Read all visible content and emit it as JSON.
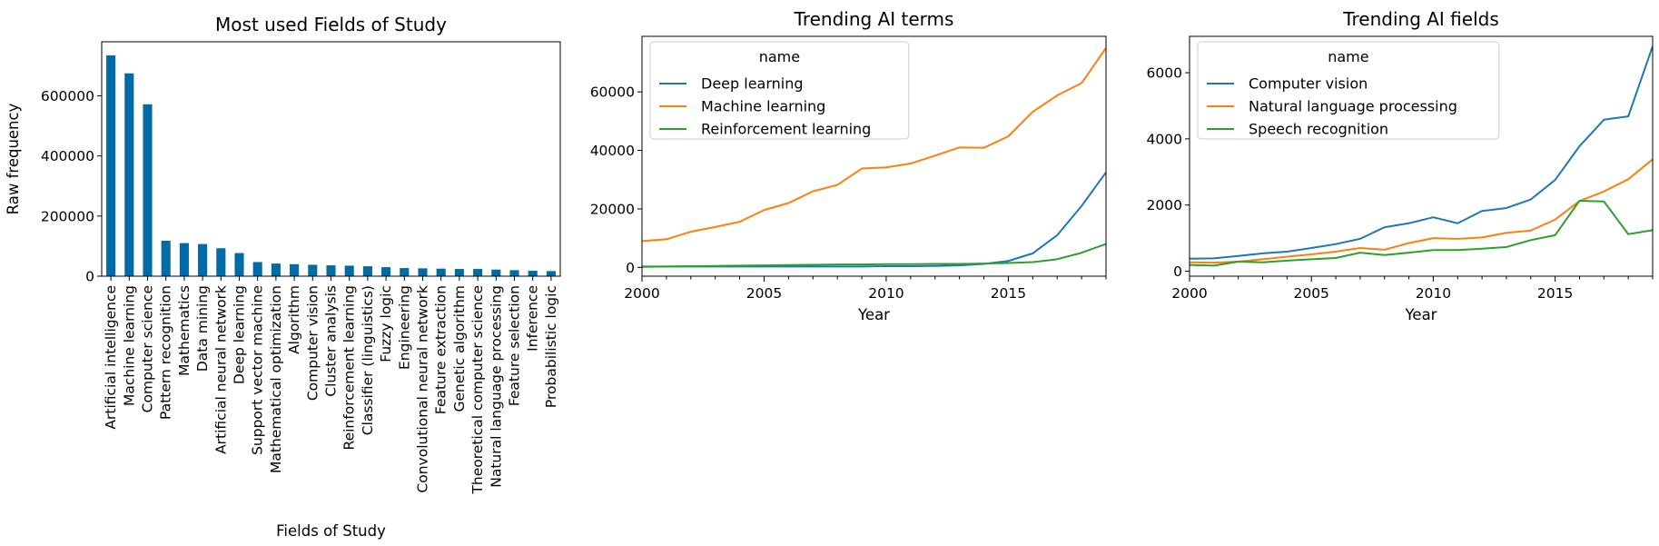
{
  "chart_data": [
    {
      "type": "bar",
      "title": "Most used Fields of Study",
      "xlabel": "Fields of Study",
      "ylabel": "Raw frequency",
      "ylim": [
        0,
        780000
      ],
      "yticks": [
        0,
        200000,
        400000,
        600000
      ],
      "color": "#006ba4",
      "categories": [
        "Artificial intelligence",
        "Machine learning",
        "Computer science",
        "Pattern recognition",
        "Mathematics",
        "Data mining",
        "Artificial neural network",
        "Deep learning",
        "Support vector machine",
        "Mathematical optimization",
        "Algorithm",
        "Computer vision",
        "Cluster analysis",
        "Reinforcement learning",
        "Classifier (linguistics)",
        "Fuzzy logic",
        "Engineering",
        "Convolutional neural network",
        "Feature extraction",
        "Genetic algorithm",
        "Theoretical computer science",
        "Natural language processing",
        "Feature selection",
        "Inference",
        "Probabilistic logic"
      ],
      "values": [
        735000,
        675000,
        572000,
        118000,
        110000,
        107000,
        93000,
        77000,
        47000,
        42000,
        40000,
        38000,
        36000,
        35000,
        33000,
        30000,
        27000,
        26000,
        25000,
        24000,
        24000,
        22000,
        20000,
        18000,
        17000
      ]
    },
    {
      "type": "line",
      "title": "Trending AI terms",
      "xlabel": "Year",
      "ylabel": "",
      "xlim": [
        2000,
        2019
      ],
      "ylim": [
        -3000,
        79000
      ],
      "xticks": [
        2000,
        2005,
        2010,
        2015
      ],
      "yticks": [
        0,
        20000,
        40000,
        60000
      ],
      "legend_title": "name",
      "legend_position": "top-left",
      "x": [
        2000,
        2001,
        2002,
        2003,
        2004,
        2005,
        2006,
        2007,
        2008,
        2009,
        2010,
        2011,
        2012,
        2013,
        2014,
        2015,
        2016,
        2017,
        2018,
        2019
      ],
      "series": [
        {
          "name": "Deep learning",
          "color": "#1f77b4",
          "values": [
            300,
            300,
            300,
            300,
            300,
            300,
            300,
            300,
            300,
            300,
            400,
            400,
            500,
            700,
            1200,
            2200,
            4800,
            11000,
            21000,
            32500
          ]
        },
        {
          "name": "Machine learning",
          "color": "#ff7f0e",
          "values": [
            9000,
            9600,
            12200,
            13800,
            15600,
            19600,
            22000,
            26000,
            28200,
            33800,
            34200,
            35500,
            38200,
            41000,
            40900,
            44800,
            53200,
            58800,
            63000,
            75000
          ]
        },
        {
          "name": "Reinforcement learning",
          "color": "#2ca02c",
          "values": [
            200,
            300,
            400,
            500,
            600,
            700,
            800,
            900,
            1000,
            1000,
            1100,
            1100,
            1200,
            1200,
            1300,
            1500,
            1800,
            2800,
            5000,
            8000
          ]
        }
      ]
    },
    {
      "type": "line",
      "title": "Trending AI fields",
      "xlabel": "Year",
      "ylabel": "",
      "xlim": [
        2000,
        2019
      ],
      "ylim": [
        -150,
        7100
      ],
      "xticks": [
        2000,
        2005,
        2010,
        2015
      ],
      "yticks": [
        0,
        2000,
        4000,
        6000
      ],
      "legend_title": "name",
      "legend_position": "top-left",
      "x": [
        2000,
        2001,
        2002,
        2003,
        2004,
        2005,
        2006,
        2007,
        2008,
        2009,
        2010,
        2011,
        2012,
        2013,
        2014,
        2015,
        2016,
        2017,
        2018,
        2019
      ],
      "series": [
        {
          "name": "Computer vision",
          "color": "#1f77b4",
          "values": [
            380,
            390,
            460,
            540,
            590,
            700,
            820,
            980,
            1330,
            1450,
            1630,
            1450,
            1820,
            1910,
            2170,
            2760,
            3780,
            4580,
            4680,
            6800
          ]
        },
        {
          "name": "Natural language processing",
          "color": "#ff7f0e",
          "values": [
            270,
            260,
            290,
            360,
            440,
            510,
            590,
            700,
            650,
            850,
            1000,
            980,
            1020,
            1160,
            1230,
            1560,
            2120,
            2410,
            2780,
            3380
          ]
        },
        {
          "name": "Speech recognition",
          "color": "#2ca02c",
          "values": [
            190,
            170,
            290,
            270,
            320,
            360,
            400,
            560,
            490,
            560,
            640,
            640,
            680,
            730,
            940,
            1090,
            2130,
            2110,
            1120,
            1240
          ]
        }
      ]
    }
  ]
}
